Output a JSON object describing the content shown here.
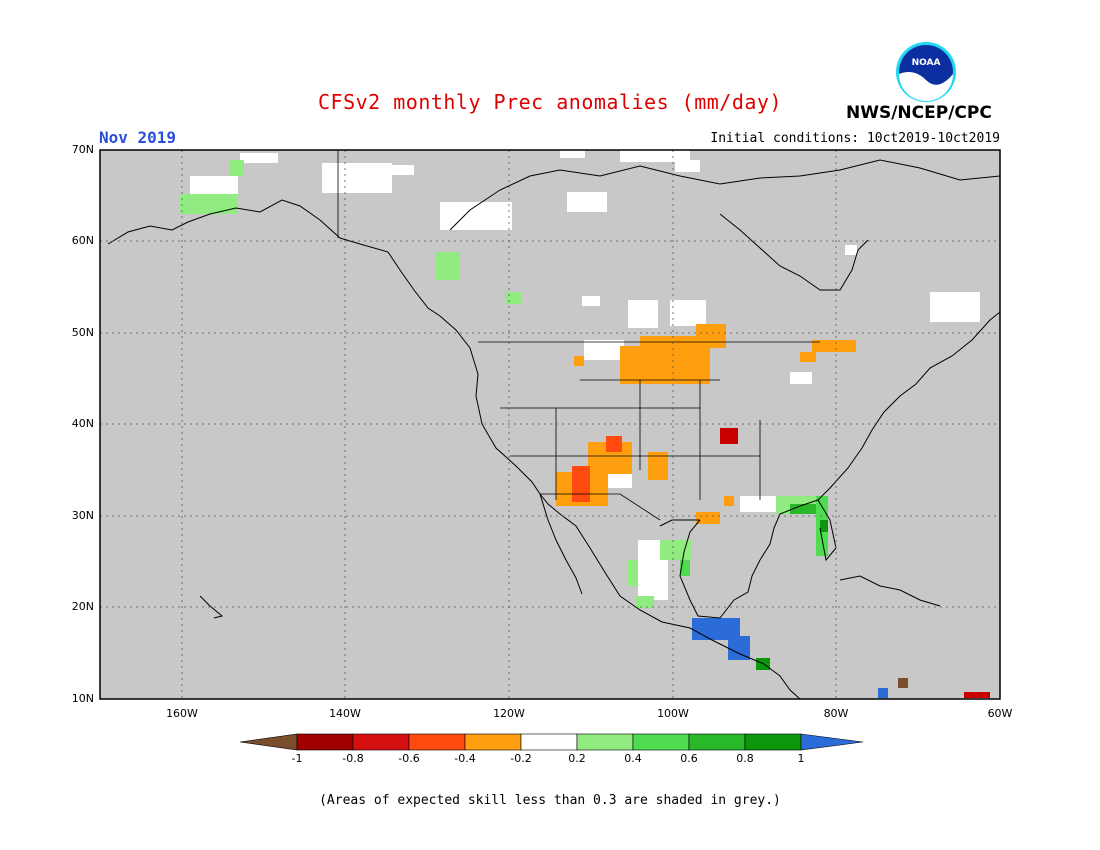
{
  "header": {
    "title": "CFSv2 monthly Prec anomalies (mm/day)",
    "month": "Nov 2019",
    "initial_conditions": "Initial conditions: 10ct2019-10ct2019",
    "org": "NWS/NCEP/CPC",
    "logo_text": "NOAA"
  },
  "map": {
    "lat_labels": [
      "70N",
      "60N",
      "50N",
      "40N",
      "30N",
      "20N",
      "10N"
    ],
    "lon_labels": [
      "160W",
      "140W",
      "120W",
      "100W",
      "80W",
      "60W"
    ],
    "background_color": "#c8c8c8",
    "land_outline_color": "#000000",
    "grid_style": "dotted"
  },
  "colorbar": {
    "ticks": [
      "-1",
      "-0.8",
      "-0.6",
      "-0.4",
      "-0.2",
      "0.2",
      "0.4",
      "0.6",
      "0.8",
      "1"
    ],
    "colors": [
      "#7a4e2c",
      "#a00000",
      "#d41010",
      "#ff4a10",
      "#ff9f10",
      "#ffffff",
      "#90ec80",
      "#50dc50",
      "#28b828",
      "#0c960c",
      "#2c6cd8"
    ]
  },
  "footnote": "(Areas of expected skill less than 0.3 are shaded in grey.)"
}
